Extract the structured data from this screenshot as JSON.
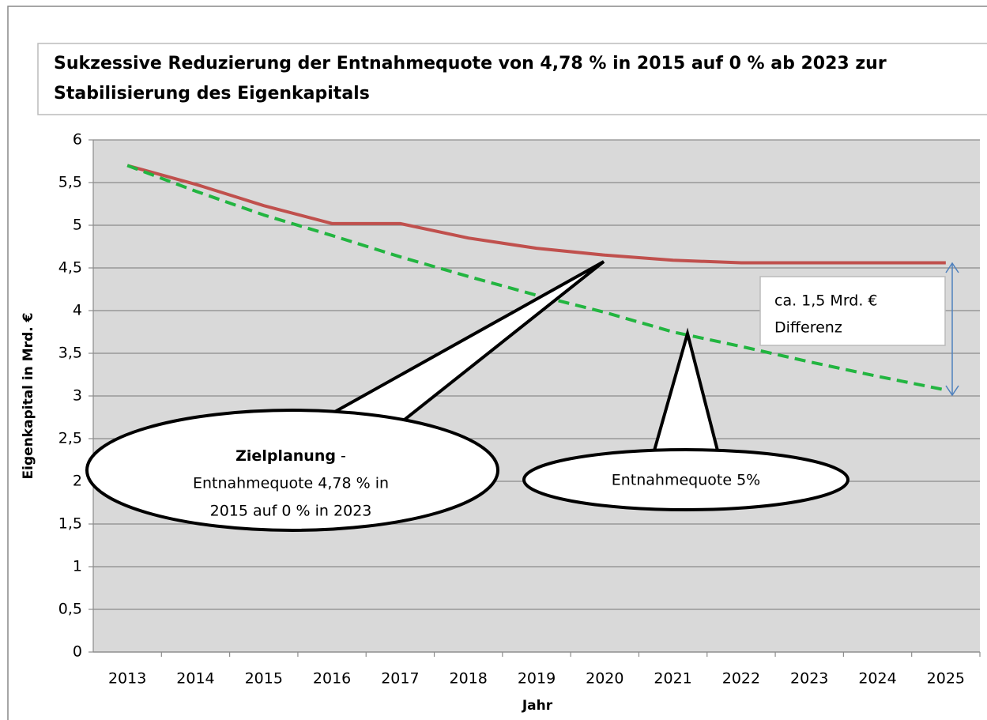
{
  "chart_data": {
    "type": "line",
    "title": "Sukzessive Reduzierung der Entnahmequote von 4,78 % in 2015 auf 0 % ab 2023 zur Stabilisierung des Eigenkapitals",
    "x_label": "Jahr",
    "y_label": "Eigenkapital in Mrd. €",
    "categories": [
      "2013",
      "2014",
      "2015",
      "2016",
      "2017",
      "2018",
      "2019",
      "2020",
      "2021",
      "2022",
      "2023",
      "2024",
      "2025"
    ],
    "series": [
      {
        "color": "#c0504d",
        "dashed": false,
        "values": [
          5.7,
          5.48,
          5.23,
          5.02,
          5.02,
          4.85,
          4.73,
          4.65,
          4.59,
          4.56,
          4.56,
          4.56,
          4.56
        ]
      },
      {
        "color": "#22b540",
        "dashed": true,
        "values": [
          5.7,
          5.4,
          5.12,
          4.88,
          4.63,
          4.4,
          4.18,
          3.98,
          3.75,
          3.58,
          3.4,
          3.23,
          3.07
        ]
      }
    ],
    "ylim": [
      0,
      6
    ],
    "yticks": [
      0,
      {
        "value": 0.5,
        "label": "0,5"
      },
      1,
      {
        "value": 1.5,
        "label": "1,5"
      },
      2,
      {
        "value": 2.5,
        "label": "2,5"
      },
      3,
      {
        "value": 3.5,
        "label": "3,5"
      },
      4,
      {
        "value": 4.5,
        "label": "4,5"
      },
      5,
      {
        "value": 5.5,
        "label": "5,5"
      },
      6
    ],
    "grid": true,
    "annotations": [
      {
        "title": "Zielplanung",
        "suffix": "-",
        "lines": [
          "Entnahmequote 4,78 % in",
          "2015 auf 0 % in 2023"
        ]
      },
      {
        "lines": [
          "Entnahmequote 5%"
        ]
      },
      {
        "lines": [
          "ca. 1,5 Mrd. €",
          "Differenz"
        ]
      }
    ]
  }
}
